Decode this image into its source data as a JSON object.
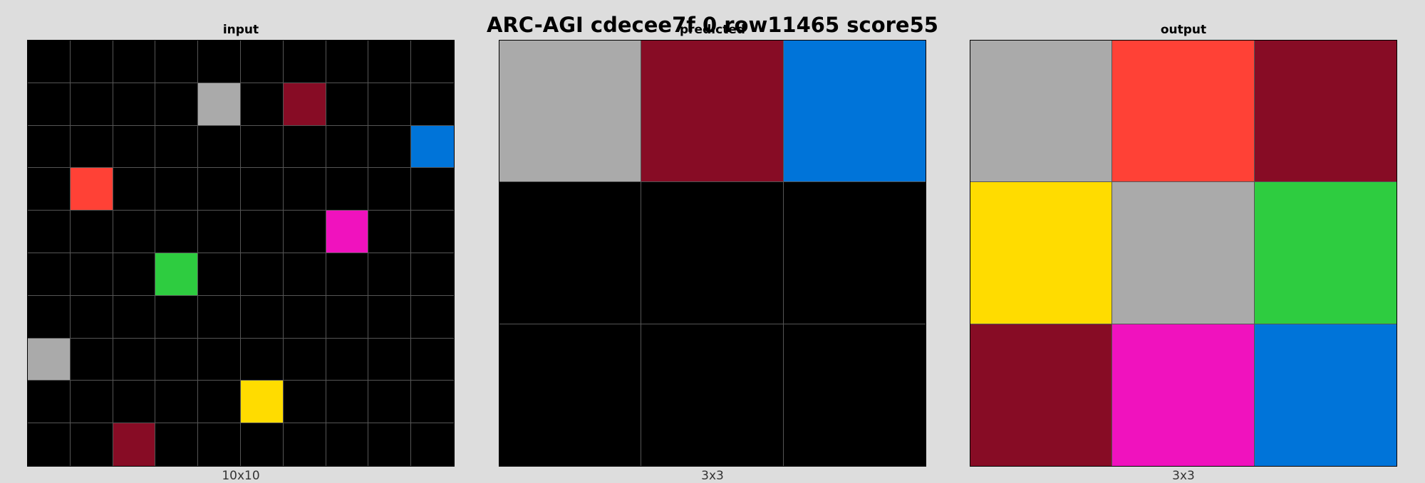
{
  "title": "ARC-AGI cdecee7f 0 row11465 score55",
  "palette": {
    "0": "#000000",
    "1": "#0074d9",
    "2": "#ff4136",
    "3": "#2ecc40",
    "4": "#ffdc00",
    "5": "#aaaaaa",
    "6": "#f012be",
    "9": "#870c25"
  },
  "panels": [
    {
      "id": "input",
      "title": "input",
      "caption": "10x10",
      "rows": 10,
      "cols": 10,
      "cells": [
        [
          0,
          0,
          0,
          0,
          0,
          0,
          0,
          0,
          0,
          0
        ],
        [
          0,
          0,
          0,
          0,
          5,
          0,
          9,
          0,
          0,
          0
        ],
        [
          0,
          0,
          0,
          0,
          0,
          0,
          0,
          0,
          0,
          1
        ],
        [
          0,
          2,
          0,
          0,
          0,
          0,
          0,
          0,
          0,
          0
        ],
        [
          0,
          0,
          0,
          0,
          0,
          0,
          0,
          6,
          0,
          0
        ],
        [
          0,
          0,
          0,
          3,
          0,
          0,
          0,
          0,
          0,
          0
        ],
        [
          0,
          0,
          0,
          0,
          0,
          0,
          0,
          0,
          0,
          0
        ],
        [
          5,
          0,
          0,
          0,
          0,
          0,
          0,
          0,
          0,
          0
        ],
        [
          0,
          0,
          0,
          0,
          0,
          4,
          0,
          0,
          0,
          0
        ],
        [
          0,
          0,
          9,
          0,
          0,
          0,
          0,
          0,
          0,
          0
        ]
      ]
    },
    {
      "id": "predicted",
      "title": "predicted",
      "caption": "3x3",
      "rows": 3,
      "cols": 3,
      "cells": [
        [
          5,
          9,
          1
        ],
        [
          0,
          0,
          0
        ],
        [
          0,
          0,
          0
        ]
      ]
    },
    {
      "id": "output",
      "title": "output",
      "caption": "3x3",
      "rows": 3,
      "cols": 3,
      "cells": [
        [
          5,
          2,
          9
        ],
        [
          4,
          5,
          3
        ],
        [
          9,
          6,
          1
        ]
      ]
    }
  ]
}
